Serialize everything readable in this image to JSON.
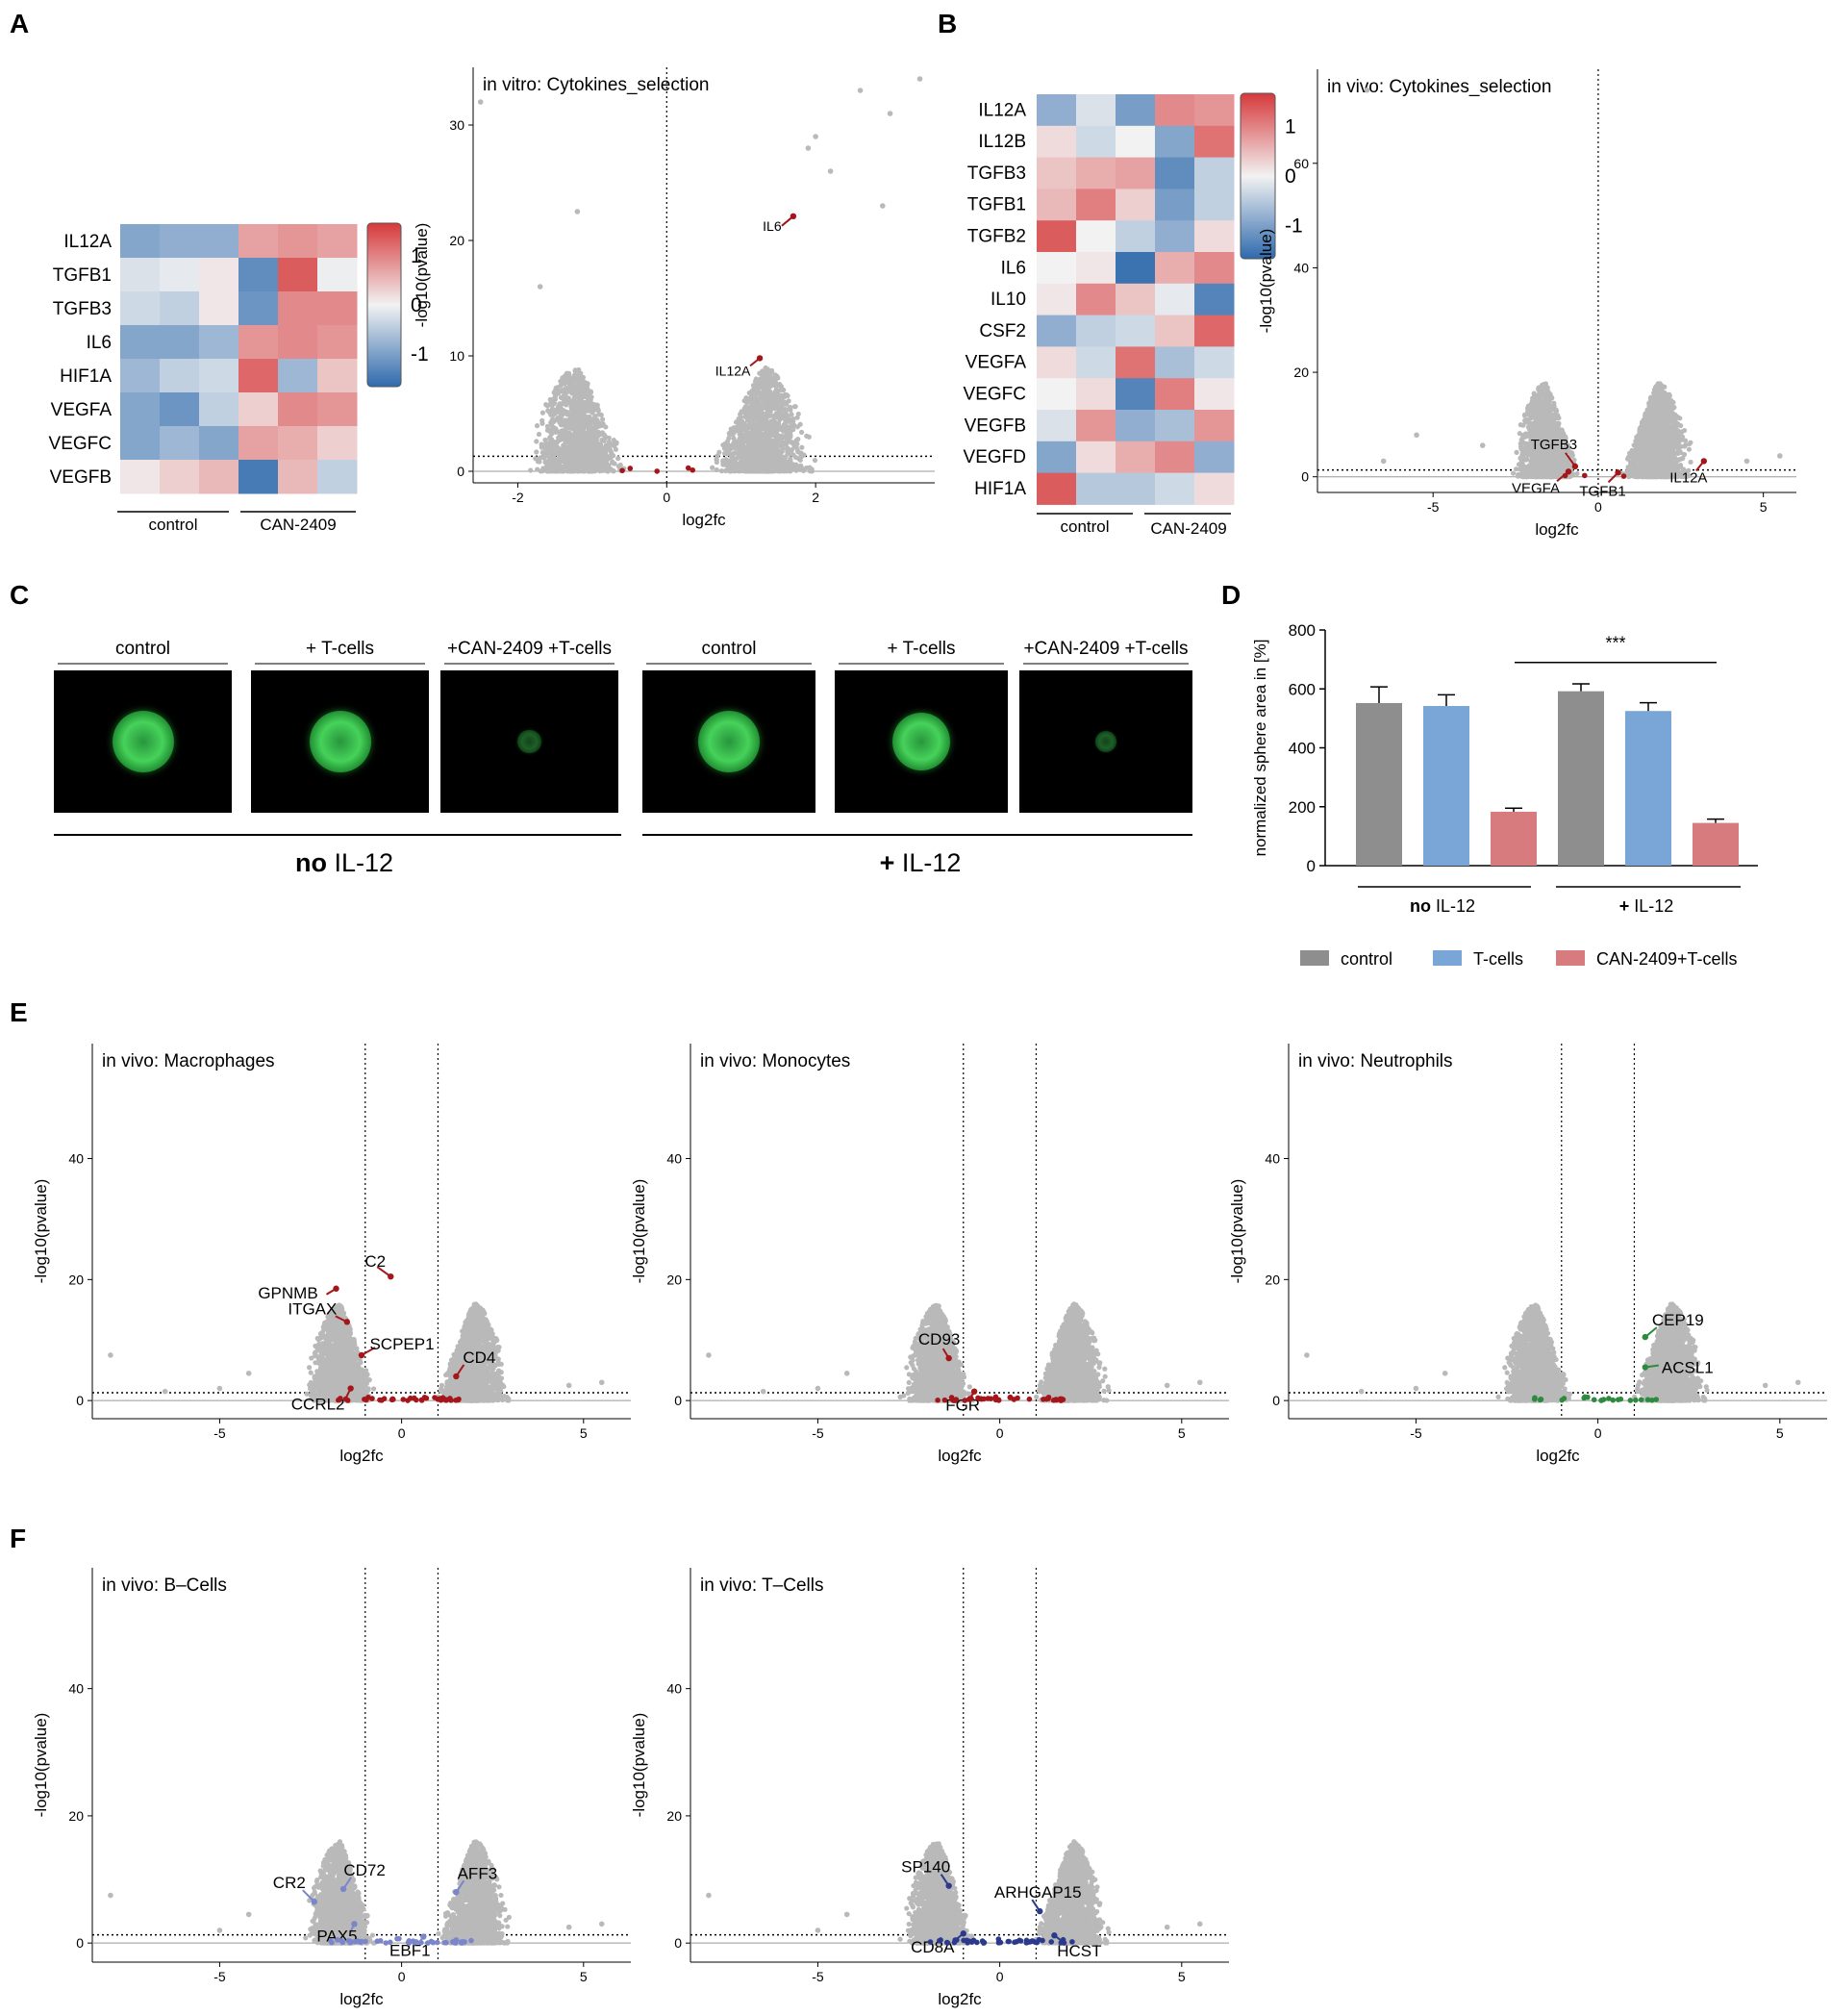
{
  "panels": {
    "A": {
      "label": "A",
      "heatmap": {
        "rows": [
          "IL12A",
          "TGFB1",
          "TGFB3",
          "IL6",
          "HIF1A",
          "VEGFA",
          "VEGFC",
          "VEGFB"
        ],
        "values": [
          [
            -0.9,
            -0.8,
            -0.8,
            0.7,
            0.8,
            0.7
          ],
          [
            -0.2,
            -0.1,
            0.1,
            -1.2,
            1.3,
            -0.05
          ],
          [
            -0.3,
            -0.4,
            0.1,
            -1.1,
            0.9,
            0.9
          ],
          [
            -0.9,
            -0.9,
            -0.7,
            0.8,
            0.9,
            0.8
          ],
          [
            -0.7,
            -0.4,
            -0.3,
            1.2,
            -0.7,
            0.4
          ],
          [
            -0.9,
            -1.1,
            -0.4,
            0.3,
            0.9,
            0.8
          ],
          [
            -0.9,
            -0.7,
            -0.9,
            0.7,
            0.6,
            0.3
          ],
          [
            0.1,
            0.3,
            0.5,
            -1.4,
            0.5,
            -0.4
          ]
        ],
        "groups": [
          "control",
          "CAN-2409"
        ],
        "scale_ticks": [
          "1",
          "0",
          "-1"
        ]
      },
      "volcano": {
        "title": "in vitro: Cytokines_selection",
        "xlabel": "log2fc",
        "ylabel": "-log10(pvalue)",
        "xticks": [
          "-2",
          "0",
          "2"
        ],
        "yticks": [
          "0",
          "10",
          "20",
          "30"
        ],
        "genes": [
          {
            "name": "IL6",
            "x": 1.7,
            "y": 22.1
          },
          {
            "name": "IL12A",
            "x": 1.25,
            "y": 9.8
          }
        ]
      }
    },
    "B": {
      "label": "B",
      "heatmap": {
        "rows": [
          "IL12A",
          "IL12B",
          "TGFB3",
          "TGFB1",
          "TGFB2",
          "IL6",
          "IL10",
          "CSF2",
          "VEGFA",
          "VEGFC",
          "VEGFB",
          "VEGFD",
          "HIF1A"
        ],
        "values": [
          [
            -0.8,
            -0.2,
            -1.0,
            0.9,
            0.8
          ],
          [
            0.2,
            -0.3,
            0.0,
            -0.9,
            1.1
          ],
          [
            0.4,
            0.6,
            0.7,
            -1.2,
            -0.4
          ],
          [
            0.5,
            1.0,
            0.3,
            -1.0,
            -0.4
          ],
          [
            1.3,
            0.0,
            -0.4,
            -0.8,
            0.2
          ],
          [
            0.0,
            0.1,
            -1.5,
            0.6,
            0.9
          ],
          [
            0.1,
            0.9,
            0.4,
            -0.1,
            -1.3
          ],
          [
            -0.8,
            -0.4,
            -0.3,
            0.4,
            1.2
          ],
          [
            0.2,
            -0.3,
            1.1,
            -0.6,
            -0.3
          ],
          [
            0.0,
            0.2,
            -1.3,
            1.0,
            0.1
          ],
          [
            -0.2,
            0.8,
            -0.8,
            -0.6,
            0.8
          ],
          [
            -0.9,
            0.2,
            0.6,
            0.9,
            -0.8
          ],
          [
            1.3,
            -0.5,
            -0.5,
            -0.3,
            0.2
          ]
        ],
        "groups": [
          "control",
          "CAN-2409"
        ],
        "scale_ticks": [
          "1",
          "0",
          "-1"
        ]
      },
      "volcano": {
        "title": "in vivo: Cytokines_selection",
        "xlabel": "log2fc",
        "ylabel": "-log10(pvalue)",
        "xticks": [
          "-5",
          "0",
          "5"
        ],
        "yticks": [
          "0",
          "20",
          "40",
          "60"
        ],
        "genes": [
          {
            "name": "TGFB3",
            "x": -0.7,
            "y": 2.0
          },
          {
            "name": "VEGFA",
            "x": -0.9,
            "y": 1.0
          },
          {
            "name": "TGFB1",
            "x": 0.6,
            "y": 0.8
          },
          {
            "name": "IL12A",
            "x": 3.2,
            "y": 3.0
          }
        ]
      }
    },
    "C": {
      "label": "C",
      "images": [
        "control",
        "+ T-cells",
        "+CAN-2409 +T-cells",
        "control",
        "+ T-cells",
        "+CAN-2409 +T-cells"
      ],
      "groups": [
        {
          "prefix": "no",
          "suffix": " IL-12"
        },
        {
          "prefix": "+",
          "suffix": " IL-12"
        }
      ]
    },
    "D": {
      "label": "D",
      "chart_data": {
        "type": "bar",
        "ylabel": "normalized sphere area in [%]",
        "ylim": [
          0,
          800
        ],
        "yticks": [
          0,
          200,
          400,
          600,
          800
        ],
        "groups": [
          {
            "prefix": "no",
            "suffix": " IL-12"
          },
          {
            "prefix": "+",
            "suffix": " IL-12"
          }
        ],
        "series": [
          {
            "name": "control",
            "color": "#8e8e8e",
            "values": [
              552,
              592
            ],
            "errors": [
              55,
              25
            ]
          },
          {
            "name": "T-cells",
            "color": "#79a6d6",
            "values": [
              542,
              525
            ],
            "errors": [
              38,
              28
            ]
          },
          {
            "name": "CAN-2409+T-cells",
            "color": "#d77b7f",
            "values": [
              183,
              145
            ],
            "errors": [
              12,
              13
            ]
          }
        ],
        "significance": "***"
      }
    },
    "E": {
      "label": "E",
      "plots": [
        {
          "title": "in vivo: Macrophages",
          "genes": [
            {
              "name": "C2",
              "x": -0.3,
              "y": 20.5
            },
            {
              "name": "GPNMB",
              "x": -1.8,
              "y": 18.5
            },
            {
              "name": "ITGAX",
              "x": -1.5,
              "y": 13.0
            },
            {
              "name": "SCPEP1",
              "x": -1.1,
              "y": 7.5
            },
            {
              "name": "CD4",
              "x": 1.5,
              "y": 4.0
            },
            {
              "name": "CCRL2",
              "x": -1.4,
              "y": 2.0
            }
          ]
        },
        {
          "title": "in vivo: Monocytes",
          "genes": [
            {
              "name": "CD93",
              "x": -1.4,
              "y": 7.0
            },
            {
              "name": "FGR",
              "x": -0.7,
              "y": 1.5
            }
          ]
        },
        {
          "title": "in vivo: Neutrophils",
          "genes": [
            {
              "name": "CEP19",
              "x": 1.3,
              "y": 10.5
            },
            {
              "name": "ACSL1",
              "x": 1.3,
              "y": 5.5
            }
          ]
        }
      ],
      "xlabel": "log2fc",
      "ylabel": "-log10(pvalue)",
      "xticks": [
        "-5",
        "0",
        "5"
      ],
      "yticks": [
        "0",
        "20",
        "40"
      ]
    },
    "F": {
      "label": "F",
      "plots": [
        {
          "title": "in vivo: B–Cells",
          "genes": [
            {
              "name": "CR2",
              "x": -2.4,
              "y": 6.5
            },
            {
              "name": "CD72",
              "x": -1.6,
              "y": 8.5
            },
            {
              "name": "AFF3",
              "x": 1.5,
              "y": 8.0
            },
            {
              "name": "PAX5",
              "x": -1.3,
              "y": 3.0
            },
            {
              "name": "EBF1",
              "x": 0.6,
              "y": 1.0
            }
          ]
        },
        {
          "title": "in vivo: T–Cells",
          "genes": [
            {
              "name": "SP140",
              "x": -1.4,
              "y": 9.0
            },
            {
              "name": "ARHGAP15",
              "x": 1.1,
              "y": 5.0
            },
            {
              "name": "CD8A",
              "x": -1.0,
              "y": 1.5
            },
            {
              "name": "HCST",
              "x": 1.5,
              "y": 1.2
            }
          ]
        }
      ],
      "xlabel": "log2fc",
      "ylabel": "-log10(pvalue)",
      "xticks": [
        "-5",
        "0",
        "5"
      ],
      "yticks": [
        "0",
        "20",
        "40"
      ]
    }
  },
  "colors": {
    "red": "#a4161a",
    "gray": "#b9b9b9",
    "green": "#2d8a3e",
    "blue": "#2b3a8c",
    "lightblue": "#7a86c9"
  }
}
